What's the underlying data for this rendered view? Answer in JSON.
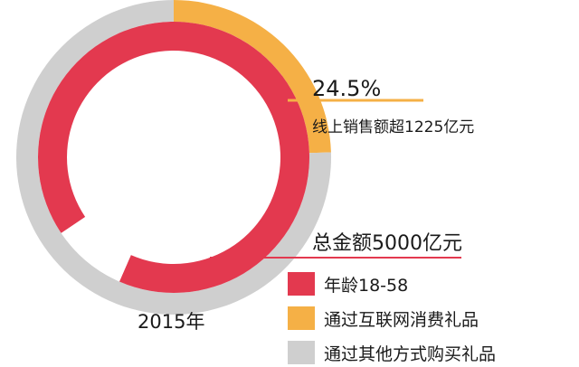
{
  "chart_data": {
    "type": "pie",
    "year_label": "2015年",
    "rings": [
      {
        "name": "outer",
        "slices": [
          {
            "key": "internet",
            "percent": 24.5,
            "color": "#f5b046"
          },
          {
            "key": "other",
            "percent": 75.5,
            "color": "#cfcfcf"
          }
        ]
      },
      {
        "name": "inner",
        "slices": [
          {
            "key": "age",
            "percent": 91,
            "color": "#e3394f"
          },
          {
            "key": "gap",
            "percent": 9,
            "color": "#ffffff"
          }
        ]
      }
    ],
    "annotations": {
      "percent_text": "24.5%",
      "online_text": "线上销售额超1225亿元",
      "total_text": "总金额5000亿元"
    },
    "legend": [
      {
        "label": "年龄18-58",
        "color": "#e3394f"
      },
      {
        "label": "通过互联网消费礼品",
        "color": "#f5b046"
      },
      {
        "label": "通过其他方式购买礼品",
        "color": "#cfcfcf"
      }
    ],
    "colors": {
      "leader_orange": "#f5b046",
      "leader_red": "#e3394f"
    }
  }
}
